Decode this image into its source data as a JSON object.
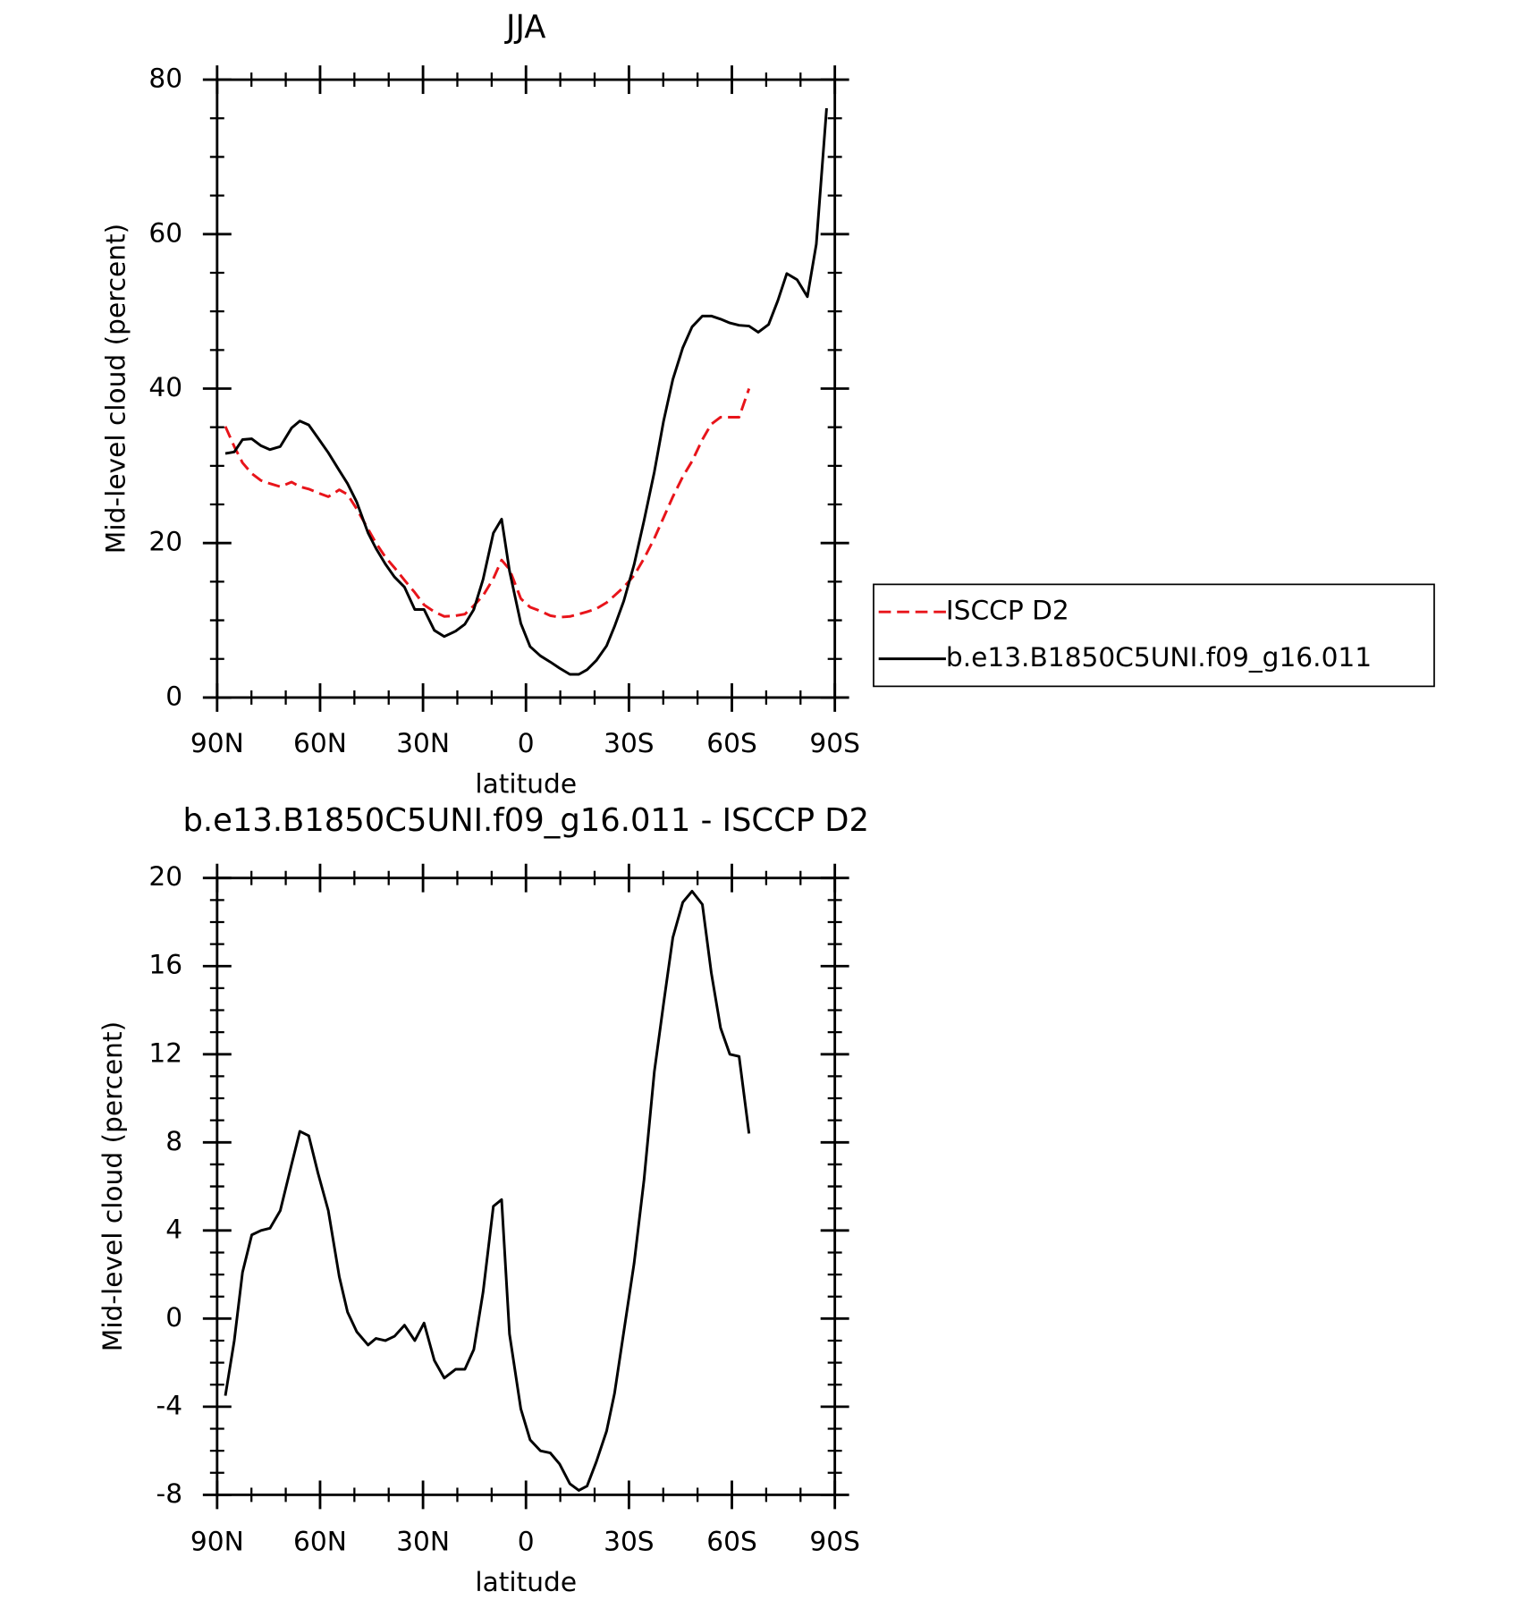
{
  "chart_data": [
    {
      "type": "line",
      "title": "JJA",
      "xlabel": "latitude",
      "ylabel": "Mid-level cloud (percent)",
      "x": [
        87.6,
        85.0,
        82.6,
        79.9,
        77.2,
        74.6,
        71.6,
        68.3,
        65.9,
        63.3,
        60.6,
        57.6,
        54.4,
        52.0,
        49.3,
        46.0,
        43.7,
        41.0,
        38.3,
        35.4,
        32.4,
        29.7,
        26.7,
        23.8,
        20.5,
        17.8,
        15.2,
        12.5,
        9.5,
        7.1,
        4.8,
        1.5,
        -1.2,
        -4.2,
        -7.1,
        -9.8,
        -12.8,
        -15.4,
        -17.8,
        -20.5,
        -23.5,
        -25.8,
        -28.5,
        -31.5,
        -34.4,
        -37.4,
        -40.1,
        -42.8,
        -45.7,
        -48.4,
        -51.4,
        -54.0,
        -56.7,
        -59.4,
        -62.1,
        -65.0,
        -67.7,
        -70.7,
        -73.4,
        -76.0,
        -79.0,
        -82.0,
        -84.6,
        -87.6
      ],
      "series": [
        {
          "name": "ISCCP D2",
          "color": "#e8141a",
          "dash": "dashed",
          "values": [
            35.1,
            32.5,
            30.4,
            29.0,
            28.1,
            27.7,
            27.3,
            27.9,
            27.3,
            27.0,
            26.5,
            26.0,
            26.9,
            26.3,
            24.4,
            21.8,
            20.0,
            18.2,
            16.8,
            15.2,
            13.6,
            12.0,
            11.1,
            10.5,
            10.6,
            10.8,
            11.9,
            13.2,
            15.4,
            17.8,
            16.6,
            12.8,
            11.7,
            11.2,
            10.6,
            10.4,
            10.5,
            10.8,
            11.1,
            11.5,
            12.3,
            13.2,
            14.3,
            15.8,
            18.0,
            20.6,
            23.3,
            26.0,
            28.6,
            30.6,
            33.4,
            35.4,
            36.3,
            36.3,
            36.3,
            40.0,
            null,
            null,
            null,
            null,
            null,
            null,
            null,
            null
          ]
        },
        {
          "name": "b.e13.B1850C5UNI.f09_g16.011",
          "color": "#000000",
          "dash": "solid",
          "values": [
            31.6,
            31.8,
            33.4,
            33.5,
            32.6,
            32.1,
            32.5,
            34.9,
            35.8,
            35.3,
            33.6,
            31.7,
            29.4,
            27.7,
            25.3,
            21.3,
            19.3,
            17.3,
            15.6,
            14.3,
            11.4,
            11.4,
            8.7,
            7.9,
            8.6,
            9.5,
            11.4,
            15.3,
            21.3,
            23.1,
            16.4,
            9.6,
            6.6,
            5.4,
            4.6,
            3.8,
            3.0,
            3.0,
            3.6,
            4.8,
            6.7,
            9.2,
            12.5,
            17.2,
            22.9,
            29.2,
            35.8,
            41.2,
            45.3,
            48.0,
            49.4,
            49.4,
            49.0,
            48.5,
            48.2,
            48.1,
            47.3,
            48.3,
            51.4,
            54.9,
            54.1,
            51.9,
            58.7,
            76.3
          ]
        }
      ],
      "xlim": [
        90,
        -90
      ],
      "xticks": [
        {
          "value": 90,
          "label": "90N"
        },
        {
          "value": 60,
          "label": "60N"
        },
        {
          "value": 30,
          "label": "30N"
        },
        0,
        {
          "value": -30,
          "label": "30S"
        },
        {
          "value": -60,
          "label": "60S"
        },
        {
          "value": -90,
          "label": "90S"
        }
      ],
      "ylim": [
        0,
        80
      ],
      "yticks": [
        0,
        20,
        40,
        60,
        80
      ],
      "legend": "right"
    },
    {
      "type": "line",
      "title": "b.e13.B1850C5UNI.f09_g16.011 - ISCCP D2",
      "xlabel": "latitude",
      "ylabel": "Mid-level cloud (percent)",
      "x": [
        87.6,
        85.0,
        82.6,
        79.9,
        77.2,
        74.6,
        71.6,
        68.3,
        65.9,
        63.3,
        60.6,
        57.6,
        54.4,
        52.0,
        49.3,
        46.0,
        43.7,
        41.0,
        38.3,
        35.4,
        32.4,
        29.7,
        26.7,
        23.8,
        20.5,
        17.8,
        15.2,
        12.5,
        9.5,
        7.1,
        4.8,
        1.5,
        -1.2,
        -4.2,
        -7.1,
        -9.8,
        -12.8,
        -15.4,
        -17.8,
        -20.5,
        -23.5,
        -25.8,
        -28.5,
        -31.5,
        -34.4,
        -37.4,
        -40.1,
        -42.8,
        -45.7,
        -48.4,
        -51.4,
        -54.0,
        -56.7,
        -59.4,
        -62.1,
        -65.0,
        -67.7,
        -70.7,
        -73.4,
        -76.0,
        -79.0,
        -82.0,
        -84.6,
        -87.6
      ],
      "series": [
        {
          "color": "#000000",
          "dash": "solid",
          "values": [
            -3.5,
            -1.0,
            2.1,
            3.8,
            4.0,
            4.1,
            4.9,
            7.0,
            8.5,
            8.3,
            6.6,
            4.9,
            1.9,
            0.3,
            -0.6,
            -1.2,
            -0.9,
            -1.0,
            -0.8,
            -0.3,
            -1.0,
            -0.2,
            -1.9,
            -2.7,
            -2.3,
            -2.3,
            -1.4,
            1.2,
            5.1,
            5.4,
            -0.7,
            -4.1,
            -5.5,
            -6.0,
            -6.1,
            -6.6,
            -7.5,
            -7.8,
            -7.6,
            -6.5,
            -5.1,
            -3.4,
            -0.6,
            2.5,
            6.3,
            11.2,
            14.3,
            17.3,
            18.9,
            19.4,
            18.8,
            15.7,
            13.2,
            12.0,
            11.9,
            8.4,
            null,
            null,
            null,
            null,
            null,
            null,
            null,
            null
          ]
        }
      ],
      "xlim": [
        90,
        -90
      ],
      "xticks": [
        {
          "value": 90,
          "label": "90N"
        },
        {
          "value": 60,
          "label": "60N"
        },
        {
          "value": 30,
          "label": "30N"
        },
        0,
        {
          "value": -30,
          "label": "30S"
        },
        {
          "value": -60,
          "label": "60S"
        },
        {
          "value": -90,
          "label": "90S"
        }
      ],
      "ylim": [
        -8,
        20
      ],
      "yticks": [
        -8,
        -4,
        0,
        4,
        8,
        12,
        16,
        20
      ]
    }
  ]
}
